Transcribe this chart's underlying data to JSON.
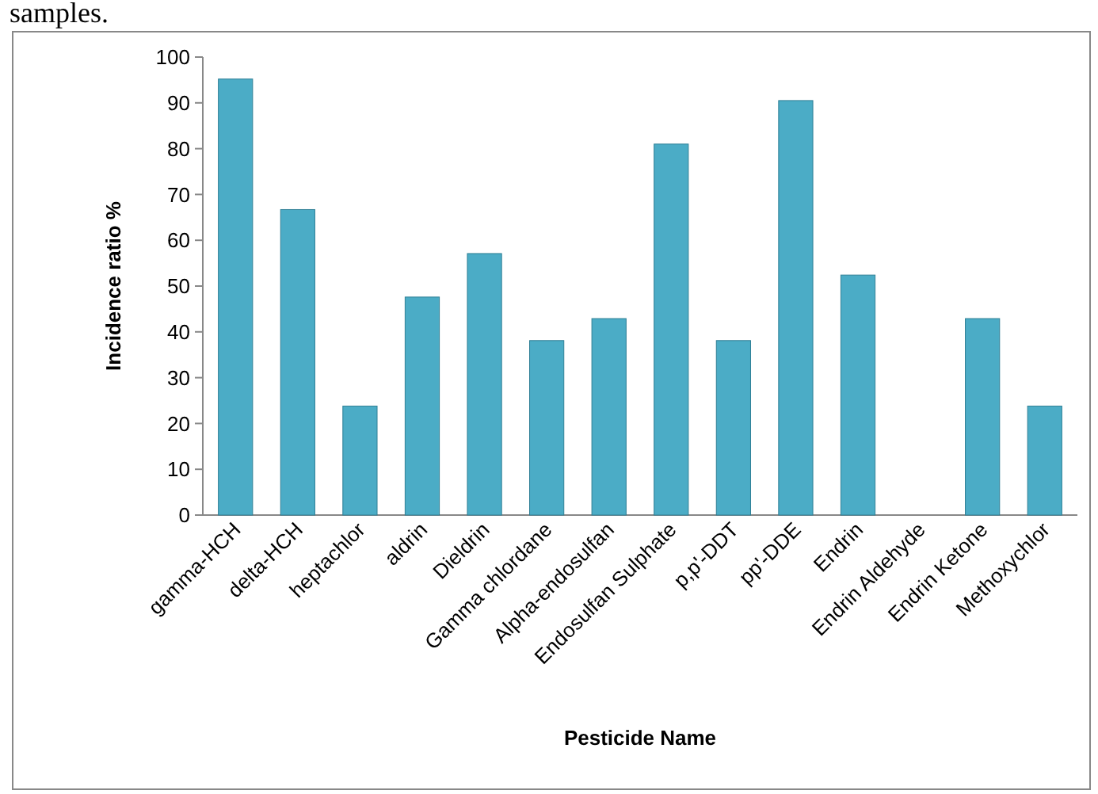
{
  "chart_data": {
    "type": "bar",
    "xlabel": "Pesticide Name",
    "ylabel": "Incidence ratio %",
    "annotations": [
      "samples."
    ],
    "categories": [
      "gamma-HCH",
      "delta-HCH",
      "heptachlor",
      "aldrin",
      "Dieldrin",
      "Gamma chlordane",
      "Alpha-endosulfan",
      "Endosulfan Sulphate",
      "p,p'-DDT",
      "pp'-DDE",
      "Endrin",
      "Endrin Aldehyde",
      "Endrin Ketone",
      "Methoxychlor"
    ],
    "values": [
      95.2,
      66.7,
      23.8,
      47.6,
      57.1,
      38.1,
      42.9,
      81,
      38.1,
      90.5,
      52.4,
      0,
      42.9,
      23.8
    ],
    "color": "#4bacc6",
    "ylim": [
      0,
      100
    ],
    "yticks": [
      0,
      10,
      20,
      30,
      40,
      50,
      60,
      70,
      80,
      90,
      100
    ],
    "grid": false
  }
}
